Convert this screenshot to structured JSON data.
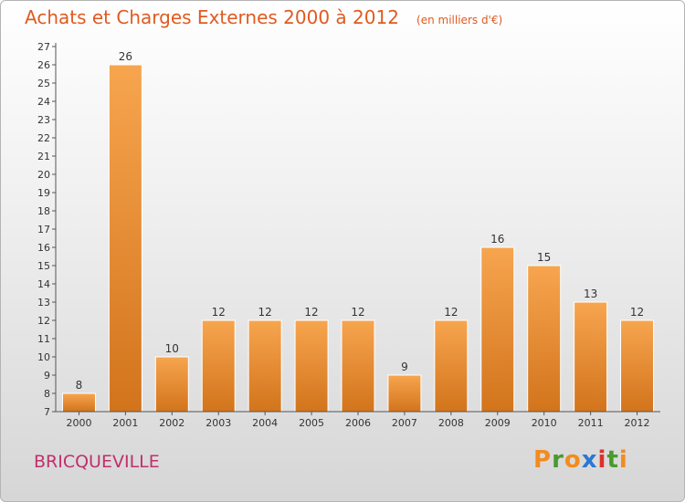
{
  "chart_data": {
    "type": "bar",
    "title": "Achats et Charges Externes 2000 à 2012",
    "subtitle": "(en milliers d'€)",
    "categories": [
      "2000",
      "2001",
      "2002",
      "2003",
      "2004",
      "2005",
      "2006",
      "2007",
      "2008",
      "2009",
      "2010",
      "2011",
      "2012"
    ],
    "values": [
      8,
      26,
      10,
      12,
      12,
      12,
      12,
      9,
      12,
      16,
      15,
      13,
      12
    ],
    "ylim": [
      7,
      27
    ],
    "yticks": [
      7,
      8,
      9,
      10,
      11,
      12,
      13,
      14,
      15,
      16,
      17,
      18,
      19,
      20,
      21,
      22,
      23,
      24,
      25,
      26,
      27
    ],
    "grid": false,
    "legend": "none",
    "bar_color_top": "#f7a54f",
    "bar_color_bottom": "#d2741c"
  },
  "place": "BRICQUEVILLE",
  "logo": {
    "letters": [
      "P",
      "r",
      "o",
      "x",
      "i",
      "t",
      "i"
    ],
    "colors": [
      "#f28c1e",
      "#4a9a2e",
      "#f28c1e",
      "#2a78d2",
      "#e0302a",
      "#4a9a2e",
      "#f28c1e"
    ]
  },
  "colors": {
    "title": "#e05a20",
    "place": "#c0306a"
  }
}
